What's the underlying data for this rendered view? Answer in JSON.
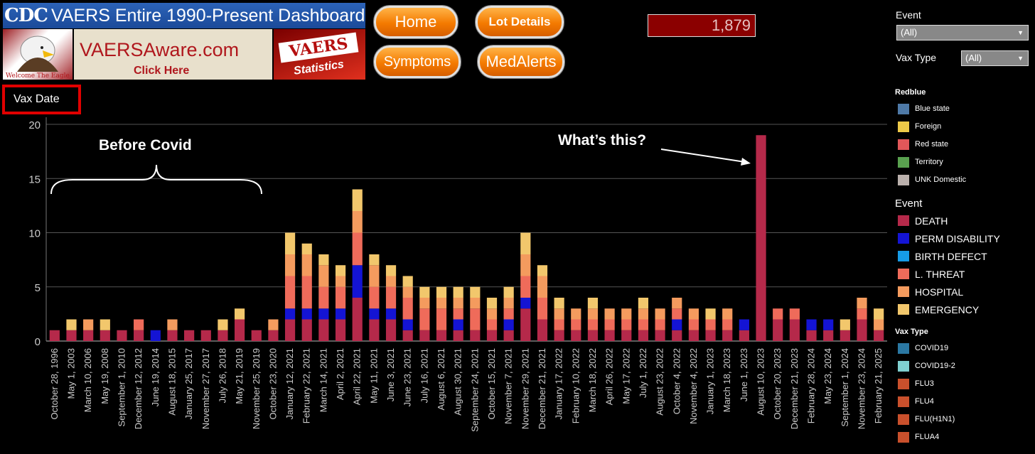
{
  "header": {
    "logo_text": "CDC",
    "banner_title": "VAERS Entire 1990-Present Dashboard",
    "eagle_caption": "Welcome The Eagle",
    "aware_name": "VAERSAware.com",
    "aware_click": "Click Here",
    "stats_top": "VAERS",
    "stats_bottom": "Statistics"
  },
  "nav": {
    "home": "Home",
    "lot_details": "Lot Details",
    "symptoms": "Symptoms",
    "medalerts": "MedAlerts"
  },
  "counter": "1,879",
  "filters": {
    "event_label": "Event",
    "event_value": "(All)",
    "vaxtype_label": "Vax Type",
    "vaxtype_value": "(All)"
  },
  "legends": {
    "redblue": {
      "title": "Redblue",
      "items": [
        {
          "label": "Blue state",
          "color": "#4e79a7"
        },
        {
          "label": "Foreign",
          "color": "#edc948"
        },
        {
          "label": "Red state",
          "color": "#e15759"
        },
        {
          "label": "Territory",
          "color": "#59a14f"
        },
        {
          "label": "UNK Domestic",
          "color": "#bab0ac"
        }
      ]
    },
    "event": {
      "title": "Event",
      "items": [
        {
          "label": "DEATH",
          "color": "#b5294a"
        },
        {
          "label": "PERM DISABILITY",
          "color": "#1414d4"
        },
        {
          "label": "BIRTH DEFECT",
          "color": "#169be6"
        },
        {
          "label": "L. THREAT",
          "color": "#ef6b5a"
        },
        {
          "label": "HOSPITAL",
          "color": "#f49b5e"
        },
        {
          "label": "EMERGENCY",
          "color": "#f2c76c"
        }
      ]
    },
    "vaxtype": {
      "title": "Vax Type",
      "items": [
        {
          "label": "COVID19",
          "color": "#2b78a3"
        },
        {
          "label": "COVID19-2",
          "color": "#7fcfcf"
        },
        {
          "label": "FLU3",
          "color": "#c9502c"
        },
        {
          "label": "FLU4",
          "color": "#c9502c"
        },
        {
          "label": "FLU(H1N1)",
          "color": "#c9502c"
        },
        {
          "label": "FLUA4",
          "color": "#c9502c"
        }
      ]
    }
  },
  "annotations": {
    "vax_date": "Vax Date",
    "before_covid": "Before Covid",
    "whats_this": "What’s this?"
  },
  "chart_data": {
    "type": "bar",
    "stacked": true,
    "xlabel": "",
    "ylabel": "",
    "ylim": [
      0,
      20
    ],
    "yticks": [
      0,
      5,
      10,
      15,
      20
    ],
    "grid": true,
    "legend": "right",
    "x_tick_labels": [
      "October 28, 1996",
      "May 1, 2003",
      "March 10, 2006",
      "May 19, 2008",
      "September 1, 2010",
      "December 12, 2012",
      "June 19, 2014",
      "August 18, 2015",
      "January 25, 2017",
      "November 27, 2017",
      "July 26, 2018",
      "May 21, 2019",
      "November 25, 2019",
      "October 23, 2020",
      "January 12, 2021",
      "February 22, 2021",
      "March 14, 2021",
      "April 2, 2021",
      "April 22, 2021",
      "May 11, 2021",
      "June 3, 2021",
      "June 23, 2021",
      "July 16, 2021",
      "August 6, 2021",
      "August 30, 2021",
      "September 24, 2021",
      "October 15, 2021",
      "November 7, 2021",
      "November 29, 2021",
      "December 21, 2021",
      "January 17, 2022",
      "February 10, 2022",
      "March 18, 2022",
      "April 26, 2022",
      "May 17, 2022",
      "July 1, 2022",
      "August 23, 2022",
      "October 4, 2022",
      "November 4, 2022",
      "January 1, 2023",
      "March 18, 2023",
      "June 1, 2023",
      "August 10, 2023",
      "October 20, 2023",
      "December 21, 2023",
      "February 28, 2024",
      "May 23, 2024",
      "September 1, 2024",
      "November 23, 2024",
      "February 21, 2025"
    ],
    "series_order": [
      "DEATH",
      "PERM DISABILITY",
      "BIRTH DEFECT",
      "L. THREAT",
      "HOSPITAL",
      "EMERGENCY"
    ],
    "bars": [
      {
        "x": "October 28, 1996",
        "DEATH": 1,
        "PERM DISABILITY": 0,
        "BIRTH DEFECT": 0,
        "L. THREAT": 0,
        "HOSPITAL": 0,
        "EMERGENCY": 0
      },
      {
        "x": "May 1, 2003",
        "DEATH": 1,
        "PERM DISABILITY": 0,
        "BIRTH DEFECT": 0,
        "L. THREAT": 0,
        "HOSPITAL": 0,
        "EMERGENCY": 1
      },
      {
        "x": "March 10, 2006",
        "DEATH": 1,
        "PERM DISABILITY": 0,
        "BIRTH DEFECT": 0,
        "L. THREAT": 0,
        "HOSPITAL": 1,
        "EMERGENCY": 0
      },
      {
        "x": "May 19, 2008",
        "DEATH": 1,
        "PERM DISABILITY": 0,
        "BIRTH DEFECT": 0,
        "L. THREAT": 0,
        "HOSPITAL": 0,
        "EMERGENCY": 1
      },
      {
        "x": "September 1, 2010",
        "DEATH": 1,
        "PERM DISABILITY": 0,
        "BIRTH DEFECT": 0,
        "L. THREAT": 0,
        "HOSPITAL": 0,
        "EMERGENCY": 0
      },
      {
        "x": "December 12, 2012",
        "DEATH": 1,
        "PERM DISABILITY": 0,
        "BIRTH DEFECT": 0,
        "L. THREAT": 1,
        "HOSPITAL": 0,
        "EMERGENCY": 0
      },
      {
        "x": "June 19, 2014",
        "DEATH": 0,
        "PERM DISABILITY": 1,
        "BIRTH DEFECT": 0,
        "L. THREAT": 0,
        "HOSPITAL": 0,
        "EMERGENCY": 0
      },
      {
        "x": "August 18, 2015",
        "DEATH": 1,
        "PERM DISABILITY": 0,
        "BIRTH DEFECT": 0,
        "L. THREAT": 0,
        "HOSPITAL": 1,
        "EMERGENCY": 0
      },
      {
        "x": "January 25, 2017",
        "DEATH": 1,
        "PERM DISABILITY": 0,
        "BIRTH DEFECT": 0,
        "L. THREAT": 0,
        "HOSPITAL": 0,
        "EMERGENCY": 0
      },
      {
        "x": "November 27, 2017",
        "DEATH": 1,
        "PERM DISABILITY": 0,
        "BIRTH DEFECT": 0,
        "L. THREAT": 0,
        "HOSPITAL": 0,
        "EMERGENCY": 0
      },
      {
        "x": "July 26, 2018",
        "DEATH": 1,
        "PERM DISABILITY": 0,
        "BIRTH DEFECT": 0,
        "L. THREAT": 0,
        "HOSPITAL": 0,
        "EMERGENCY": 1
      },
      {
        "x": "May 21, 2019",
        "DEATH": 2,
        "PERM DISABILITY": 0,
        "BIRTH DEFECT": 0,
        "L. THREAT": 0,
        "HOSPITAL": 0,
        "EMERGENCY": 1
      },
      {
        "x": "November 25, 2019",
        "DEATH": 1,
        "PERM DISABILITY": 0,
        "BIRTH DEFECT": 0,
        "L. THREAT": 0,
        "HOSPITAL": 0,
        "EMERGENCY": 0
      },
      {
        "x": "October 23, 2020",
        "DEATH": 1,
        "PERM DISABILITY": 0,
        "BIRTH DEFECT": 0,
        "L. THREAT": 0,
        "HOSPITAL": 1,
        "EMERGENCY": 0
      },
      {
        "x": "January 12, 2021",
        "DEATH": 2,
        "PERM DISABILITY": 1,
        "BIRTH DEFECT": 0,
        "L. THREAT": 3,
        "HOSPITAL": 2,
        "EMERGENCY": 2
      },
      {
        "x": "February 22, 2021",
        "DEATH": 2,
        "PERM DISABILITY": 1,
        "BIRTH DEFECT": 0,
        "L. THREAT": 3,
        "HOSPITAL": 2,
        "EMERGENCY": 1
      },
      {
        "x": "March 14, 2021",
        "DEATH": 2,
        "PERM DISABILITY": 1,
        "BIRTH DEFECT": 0,
        "L. THREAT": 2,
        "HOSPITAL": 2,
        "EMERGENCY": 1
      },
      {
        "x": "April 2, 2021",
        "DEATH": 2,
        "PERM DISABILITY": 1,
        "BIRTH DEFECT": 0,
        "L. THREAT": 2,
        "HOSPITAL": 1,
        "EMERGENCY": 1
      },
      {
        "x": "April 22, 2021",
        "DEATH": 4,
        "PERM DISABILITY": 3,
        "BIRTH DEFECT": 0,
        "L. THREAT": 3,
        "HOSPITAL": 2,
        "EMERGENCY": 2
      },
      {
        "x": "May 11, 2021",
        "DEATH": 2,
        "PERM DISABILITY": 1,
        "BIRTH DEFECT": 0,
        "L. THREAT": 2,
        "HOSPITAL": 2,
        "EMERGENCY": 1
      },
      {
        "x": "June 3, 2021",
        "DEATH": 2,
        "PERM DISABILITY": 1,
        "BIRTH DEFECT": 0,
        "L. THREAT": 2,
        "HOSPITAL": 1,
        "EMERGENCY": 1
      },
      {
        "x": "June 23, 2021",
        "DEATH": 1,
        "PERM DISABILITY": 1,
        "BIRTH DEFECT": 0,
        "L. THREAT": 2,
        "HOSPITAL": 1,
        "EMERGENCY": 1
      },
      {
        "x": "July 16, 2021",
        "DEATH": 1,
        "PERM DISABILITY": 0,
        "BIRTH DEFECT": 0,
        "L. THREAT": 2,
        "HOSPITAL": 1,
        "EMERGENCY": 1
      },
      {
        "x": "August 6, 2021",
        "DEATH": 1,
        "PERM DISABILITY": 0,
        "BIRTH DEFECT": 0,
        "L. THREAT": 2,
        "HOSPITAL": 1,
        "EMERGENCY": 1
      },
      {
        "x": "August 30, 2021",
        "DEATH": 1,
        "PERM DISABILITY": 1,
        "BIRTH DEFECT": 0,
        "L. THREAT": 1,
        "HOSPITAL": 1,
        "EMERGENCY": 1
      },
      {
        "x": "September 24, 2021",
        "DEATH": 1,
        "PERM DISABILITY": 0,
        "BIRTH DEFECT": 0,
        "L. THREAT": 2,
        "HOSPITAL": 1,
        "EMERGENCY": 1
      },
      {
        "x": "October 15, 2021",
        "DEATH": 1,
        "PERM DISABILITY": 0,
        "BIRTH DEFECT": 0,
        "L. THREAT": 1,
        "HOSPITAL": 1,
        "EMERGENCY": 1
      },
      {
        "x": "November 7, 2021",
        "DEATH": 1,
        "PERM DISABILITY": 1,
        "BIRTH DEFECT": 0,
        "L. THREAT": 1,
        "HOSPITAL": 1,
        "EMERGENCY": 1
      },
      {
        "x": "November 29, 2021",
        "DEATH": 3,
        "PERM DISABILITY": 1,
        "BIRTH DEFECT": 0,
        "L. THREAT": 2,
        "HOSPITAL": 2,
        "EMERGENCY": 2
      },
      {
        "x": "December 21, 2021",
        "DEATH": 2,
        "PERM DISABILITY": 0,
        "BIRTH DEFECT": 0,
        "L. THREAT": 2,
        "HOSPITAL": 2,
        "EMERGENCY": 1
      },
      {
        "x": "January 17, 2022",
        "DEATH": 1,
        "PERM DISABILITY": 0,
        "BIRTH DEFECT": 0,
        "L. THREAT": 1,
        "HOSPITAL": 1,
        "EMERGENCY": 1
      },
      {
        "x": "February 10, 2022",
        "DEATH": 1,
        "PERM DISABILITY": 0,
        "BIRTH DEFECT": 0,
        "L. THREAT": 1,
        "HOSPITAL": 1,
        "EMERGENCY": 0
      },
      {
        "x": "March 18, 2022",
        "DEATH": 1,
        "PERM DISABILITY": 0,
        "BIRTH DEFECT": 0,
        "L. THREAT": 1,
        "HOSPITAL": 1,
        "EMERGENCY": 1
      },
      {
        "x": "April 26, 2022",
        "DEATH": 1,
        "PERM DISABILITY": 0,
        "BIRTH DEFECT": 0,
        "L. THREAT": 1,
        "HOSPITAL": 1,
        "EMERGENCY": 0
      },
      {
        "x": "May 17, 2022",
        "DEATH": 1,
        "PERM DISABILITY": 0,
        "BIRTH DEFECT": 0,
        "L. THREAT": 1,
        "HOSPITAL": 1,
        "EMERGENCY": 0
      },
      {
        "x": "July 1, 2022",
        "DEATH": 1,
        "PERM DISABILITY": 0,
        "BIRTH DEFECT": 0,
        "L. THREAT": 1,
        "HOSPITAL": 1,
        "EMERGENCY": 1
      },
      {
        "x": "August 23, 2022",
        "DEATH": 1,
        "PERM DISABILITY": 0,
        "BIRTH DEFECT": 0,
        "L. THREAT": 1,
        "HOSPITAL": 1,
        "EMERGENCY": 0
      },
      {
        "x": "October 4, 2022",
        "DEATH": 1,
        "PERM DISABILITY": 1,
        "BIRTH DEFECT": 0,
        "L. THREAT": 1,
        "HOSPITAL": 1,
        "EMERGENCY": 0
      },
      {
        "x": "November 4, 2022",
        "DEATH": 1,
        "PERM DISABILITY": 0,
        "BIRTH DEFECT": 0,
        "L. THREAT": 1,
        "HOSPITAL": 1,
        "EMERGENCY": 0
      },
      {
        "x": "January 1, 2023",
        "DEATH": 1,
        "PERM DISABILITY": 0,
        "BIRTH DEFECT": 0,
        "L. THREAT": 1,
        "HOSPITAL": 0,
        "EMERGENCY": 1
      },
      {
        "x": "March 18, 2023",
        "DEATH": 1,
        "PERM DISABILITY": 0,
        "BIRTH DEFECT": 0,
        "L. THREAT": 1,
        "HOSPITAL": 1,
        "EMERGENCY": 0
      },
      {
        "x": "June 1, 2023",
        "DEATH": 1,
        "PERM DISABILITY": 1,
        "BIRTH DEFECT": 0,
        "L. THREAT": 0,
        "HOSPITAL": 0,
        "EMERGENCY": 0
      },
      {
        "x": "August 10, 2023",
        "DEATH": 19,
        "PERM DISABILITY": 0,
        "BIRTH DEFECT": 0,
        "L. THREAT": 0,
        "HOSPITAL": 0,
        "EMERGENCY": 0
      },
      {
        "x": "October 20, 2023",
        "DEATH": 2,
        "PERM DISABILITY": 0,
        "BIRTH DEFECT": 0,
        "L. THREAT": 1,
        "HOSPITAL": 0,
        "EMERGENCY": 0
      },
      {
        "x": "December 21, 2023",
        "DEATH": 2,
        "PERM DISABILITY": 0,
        "BIRTH DEFECT": 0,
        "L. THREAT": 1,
        "HOSPITAL": 0,
        "EMERGENCY": 0
      },
      {
        "x": "February 28, 2024",
        "DEATH": 1,
        "PERM DISABILITY": 1,
        "BIRTH DEFECT": 0,
        "L. THREAT": 0,
        "HOSPITAL": 0,
        "EMERGENCY": 0
      },
      {
        "x": "May 23, 2024",
        "DEATH": 1,
        "PERM DISABILITY": 1,
        "BIRTH DEFECT": 0,
        "L. THREAT": 0,
        "HOSPITAL": 0,
        "EMERGENCY": 0
      },
      {
        "x": "September 1, 2024",
        "DEATH": 1,
        "PERM DISABILITY": 0,
        "BIRTH DEFECT": 0,
        "L. THREAT": 0,
        "HOSPITAL": 0,
        "EMERGENCY": 1
      },
      {
        "x": "November 23, 2024",
        "DEATH": 2,
        "PERM DISABILITY": 0,
        "BIRTH DEFECT": 0,
        "L. THREAT": 1,
        "HOSPITAL": 1,
        "EMERGENCY": 0
      },
      {
        "x": "February 21, 2025",
        "DEATH": 1,
        "PERM DISABILITY": 0,
        "BIRTH DEFECT": 0,
        "L. THREAT": 0,
        "HOSPITAL": 1,
        "EMERGENCY": 1
      }
    ]
  }
}
